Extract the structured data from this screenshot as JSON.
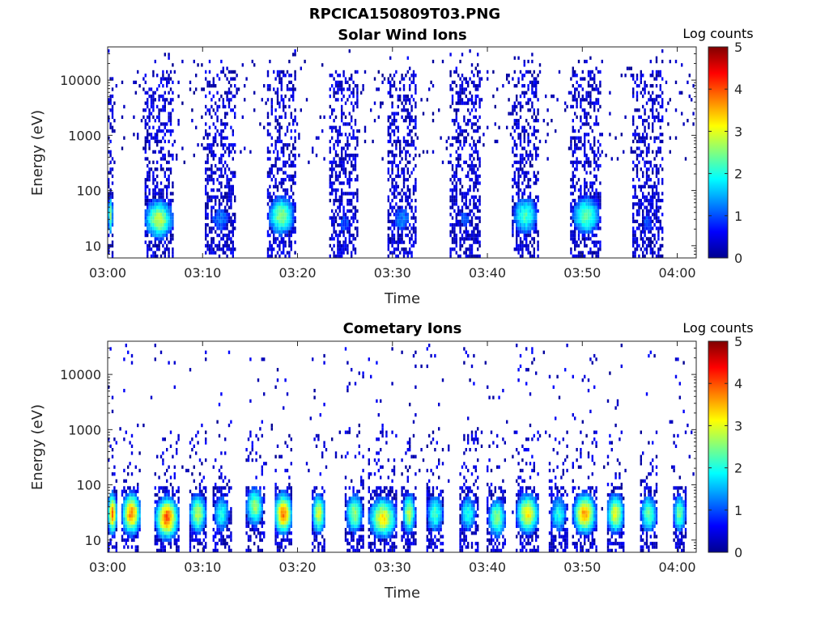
{
  "figure": {
    "title": "RPCICA150809T03.PNG"
  },
  "colors": {
    "axis": "#262626",
    "colormap": [
      "#00008f",
      "#0000ff",
      "#0080ff",
      "#00ffff",
      "#80ff80",
      "#ffff00",
      "#ff8000",
      "#ff0000",
      "#800000"
    ]
  },
  "chart_data": [
    {
      "type": "heatmap",
      "title": "Solar Wind Ions",
      "xlabel": "Time",
      "ylabel": "Energy (eV)",
      "xticks": [
        "03:00",
        "03:10",
        "03:20",
        "03:30",
        "03:40",
        "03:50",
        "04:00"
      ],
      "xlim_minutes": [
        0,
        62
      ],
      "yscale": "log",
      "ylim": [
        6,
        40000
      ],
      "yticks": [
        10,
        100,
        1000,
        10000
      ],
      "yticklabels": [
        "10",
        "100",
        "1000",
        "10000"
      ],
      "colorbar": {
        "label": "Log counts",
        "range": [
          0,
          5
        ],
        "ticks": [
          "0",
          "1",
          "2",
          "3",
          "4",
          "5"
        ]
      },
      "bursts": [
        {
          "start_min": 0.0,
          "end_min": 0.6,
          "peak_energy_ev": 35,
          "peak_log_counts": 2.5
        },
        {
          "start_min": 3.8,
          "end_min": 7.0,
          "peak_energy_ev": 30,
          "peak_log_counts": 2.8
        },
        {
          "start_min": 10.3,
          "end_min": 13.5,
          "peak_energy_ev": 30,
          "peak_log_counts": 1.2
        },
        {
          "start_min": 16.8,
          "end_min": 19.8,
          "peak_energy_ev": 35,
          "peak_log_counts": 2.6
        },
        {
          "start_min": 23.3,
          "end_min": 26.5,
          "peak_energy_ev": 25,
          "peak_log_counts": 1.0
        },
        {
          "start_min": 29.5,
          "end_min": 32.5,
          "peak_energy_ev": 30,
          "peak_log_counts": 1.2
        },
        {
          "start_min": 36.0,
          "end_min": 39.3,
          "peak_energy_ev": 30,
          "peak_log_counts": 1.0
        },
        {
          "start_min": 42.5,
          "end_min": 45.5,
          "peak_energy_ev": 35,
          "peak_log_counts": 2.2
        },
        {
          "start_min": 48.8,
          "end_min": 52.0,
          "peak_energy_ev": 35,
          "peak_log_counts": 2.4
        },
        {
          "start_min": 55.3,
          "end_min": 58.5,
          "peak_energy_ev": 25,
          "peak_log_counts": 1.0
        }
      ]
    },
    {
      "type": "heatmap",
      "title": "Cometary Ions",
      "xlabel": "Time",
      "ylabel": "Energy (eV)",
      "xticks": [
        "03:00",
        "03:10",
        "03:20",
        "03:30",
        "03:40",
        "03:50",
        "04:00"
      ],
      "xlim_minutes": [
        0,
        62
      ],
      "yscale": "log",
      "ylim": [
        6,
        40000
      ],
      "yticks": [
        10,
        100,
        1000,
        10000
      ],
      "yticklabels": [
        "10",
        "100",
        "1000",
        "10000"
      ],
      "colorbar": {
        "label": "Log counts",
        "range": [
          0,
          5
        ],
        "ticks": [
          "0",
          "1",
          "2",
          "3",
          "4",
          "5"
        ]
      },
      "bursts": [
        {
          "start_min": 0.0,
          "end_min": 1.0,
          "peak_energy_ev": 30,
          "peak_log_counts": 3.8
        },
        {
          "start_min": 1.5,
          "end_min": 3.5,
          "peak_energy_ev": 30,
          "peak_log_counts": 3.8
        },
        {
          "start_min": 5.0,
          "end_min": 7.5,
          "peak_energy_ev": 25,
          "peak_log_counts": 4.0
        },
        {
          "start_min": 8.5,
          "end_min": 10.5,
          "peak_energy_ev": 30,
          "peak_log_counts": 2.8
        },
        {
          "start_min": 11.0,
          "end_min": 13.0,
          "peak_energy_ev": 30,
          "peak_log_counts": 2.0
        },
        {
          "start_min": 14.5,
          "end_min": 16.5,
          "peak_energy_ev": 40,
          "peak_log_counts": 2.6
        },
        {
          "start_min": 17.5,
          "end_min": 19.5,
          "peak_energy_ev": 30,
          "peak_log_counts": 3.8
        },
        {
          "start_min": 21.5,
          "end_min": 23.0,
          "peak_energy_ev": 30,
          "peak_log_counts": 3.0
        },
        {
          "start_min": 25.0,
          "end_min": 27.0,
          "peak_energy_ev": 30,
          "peak_log_counts": 2.6
        },
        {
          "start_min": 27.5,
          "end_min": 30.5,
          "peak_energy_ev": 25,
          "peak_log_counts": 3.2
        },
        {
          "start_min": 31.0,
          "end_min": 32.5,
          "peak_energy_ev": 30,
          "peak_log_counts": 2.8
        },
        {
          "start_min": 33.5,
          "end_min": 35.5,
          "peak_energy_ev": 30,
          "peak_log_counts": 2.2
        },
        {
          "start_min": 37.0,
          "end_min": 39.0,
          "peak_energy_ev": 30,
          "peak_log_counts": 2.0
        },
        {
          "start_min": 40.0,
          "end_min": 42.0,
          "peak_energy_ev": 25,
          "peak_log_counts": 2.6
        },
        {
          "start_min": 43.0,
          "end_min": 45.5,
          "peak_energy_ev": 30,
          "peak_log_counts": 3.2
        },
        {
          "start_min": 46.5,
          "end_min": 48.5,
          "peak_energy_ev": 30,
          "peak_log_counts": 2.0
        },
        {
          "start_min": 49.0,
          "end_min": 51.5,
          "peak_energy_ev": 30,
          "peak_log_counts": 3.6
        },
        {
          "start_min": 52.5,
          "end_min": 54.5,
          "peak_energy_ev": 30,
          "peak_log_counts": 3.0
        },
        {
          "start_min": 56.0,
          "end_min": 58.0,
          "peak_energy_ev": 30,
          "peak_log_counts": 2.4
        },
        {
          "start_min": 59.5,
          "end_min": 61.0,
          "peak_energy_ev": 30,
          "peak_log_counts": 2.4
        }
      ]
    }
  ]
}
